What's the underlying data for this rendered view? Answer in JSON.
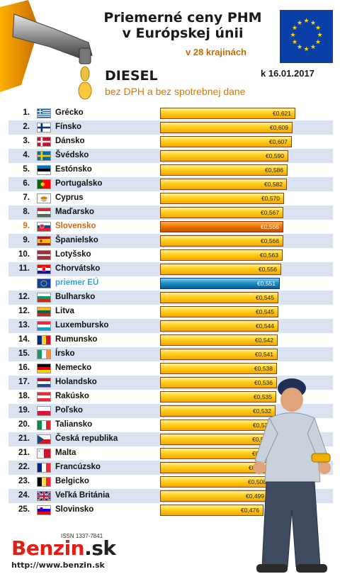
{
  "header": {
    "title_line1": "Priemerné ceny PHM",
    "title_line2": "v Európskej únii",
    "subtitle": "v 28 krajinách",
    "fuel": "DIESEL",
    "date": "k 16.01.2017",
    "note": "bez DPH a bez spotrebnej dane"
  },
  "colors": {
    "bar": "#ffc000",
    "highlight_bar": "#e87000",
    "eu_bar": "#1e8ec8",
    "row_alt": "#dae3f2",
    "accent": "#d67800"
  },
  "chart_data": {
    "type": "bar",
    "orientation": "horizontal",
    "title": "Priemerné ceny PHM v Európskej únii",
    "xlim": [
      0,
      0.7
    ],
    "rows": [
      {
        "rank": "1.",
        "country": "Grécko",
        "flag": "gr",
        "value": 0.621,
        "label": "€0,621"
      },
      {
        "rank": "2.",
        "country": "Fínsko",
        "flag": "fi",
        "value": 0.609,
        "label": "€0,609"
      },
      {
        "rank": "3.",
        "country": "Dánsko",
        "flag": "dk",
        "value": 0.607,
        "label": "€0,607"
      },
      {
        "rank": "4.",
        "country": "Švédsko",
        "flag": "se",
        "value": 0.59,
        "label": "€0,590"
      },
      {
        "rank": "5.",
        "country": "Estónsko",
        "flag": "ee",
        "value": 0.586,
        "label": "€0,586"
      },
      {
        "rank": "6.",
        "country": "Portugalsko",
        "flag": "pt",
        "value": 0.582,
        "label": "€0,582"
      },
      {
        "rank": "7.",
        "country": "Cyprus",
        "flag": "cy",
        "value": 0.57,
        "label": "€0,570"
      },
      {
        "rank": "8.",
        "country": "Maďarsko",
        "flag": "hu",
        "value": 0.567,
        "label": "€0,567"
      },
      {
        "rank": "9.",
        "country": "Slovensko",
        "flag": "sk",
        "value": 0.566,
        "label": "€0,566",
        "highlight": "sk"
      },
      {
        "rank": "9.",
        "country": "Španielsko",
        "flag": "es",
        "value": 0.566,
        "label": "€0,566"
      },
      {
        "rank": "10.",
        "country": "Lotyšsko",
        "flag": "lv",
        "value": 0.563,
        "label": "€0,563"
      },
      {
        "rank": "11.",
        "country": "Chorvátsko",
        "flag": "hr",
        "value": 0.556,
        "label": "€0,556"
      },
      {
        "rank": "",
        "country": "priemer EÚ",
        "flag": "eu",
        "value": 0.551,
        "label": "€0,551",
        "highlight": "eu"
      },
      {
        "rank": "12.",
        "country": "Bulharsko",
        "flag": "bg",
        "value": 0.545,
        "label": "€0,545"
      },
      {
        "rank": "12.",
        "country": "Litva",
        "flag": "lt",
        "value": 0.545,
        "label": "€0,545"
      },
      {
        "rank": "13.",
        "country": "Luxembursko",
        "flag": "lu",
        "value": 0.544,
        "label": "€0,544"
      },
      {
        "rank": "14.",
        "country": "Rumunsko",
        "flag": "ro",
        "value": 0.542,
        "label": "€0,542"
      },
      {
        "rank": "15.",
        "country": "Írsko",
        "flag": "ie",
        "value": 0.541,
        "label": "€0,541"
      },
      {
        "rank": "16.",
        "country": "Nemecko",
        "flag": "de",
        "value": 0.538,
        "label": "€0,538"
      },
      {
        "rank": "17.",
        "country": "Holandsko",
        "flag": "nl",
        "value": 0.536,
        "label": "€0,536"
      },
      {
        "rank": "18.",
        "country": "Rakúsko",
        "flag": "at",
        "value": 0.535,
        "label": "€0,535"
      },
      {
        "rank": "19.",
        "country": "Poľsko",
        "flag": "pl",
        "value": 0.532,
        "label": "€0,532"
      },
      {
        "rank": "20.",
        "country": "Taliansko",
        "flag": "it",
        "value": 0.53,
        "label": "€0,530"
      },
      {
        "rank": "21.",
        "country": "Česká republika",
        "flag": "cz",
        "value": 0.528,
        "label": "€0,528"
      },
      {
        "rank": "21.",
        "country": "Malta",
        "flag": "mt",
        "value": 0.528,
        "label": "€0,528"
      },
      {
        "rank": "22.",
        "country": "Francúzsko",
        "flag": "fr",
        "value": 0.51,
        "label": "€0,510"
      },
      {
        "rank": "23.",
        "country": "Belgicko",
        "flag": "be",
        "value": 0.508,
        "label": "€0,508"
      },
      {
        "rank": "24.",
        "country": "Veľká Británia",
        "flag": "gb",
        "value": 0.499,
        "label": "€0,499"
      },
      {
        "rank": "25.",
        "country": "Slovinsko",
        "flag": "si",
        "value": 0.476,
        "label": "€0,476"
      }
    ]
  },
  "footer": {
    "issn": "ISSN 1337-7841",
    "logo_main": "Benzin",
    "logo_tld": ".sk",
    "url": "http://www.benzin.sk"
  }
}
